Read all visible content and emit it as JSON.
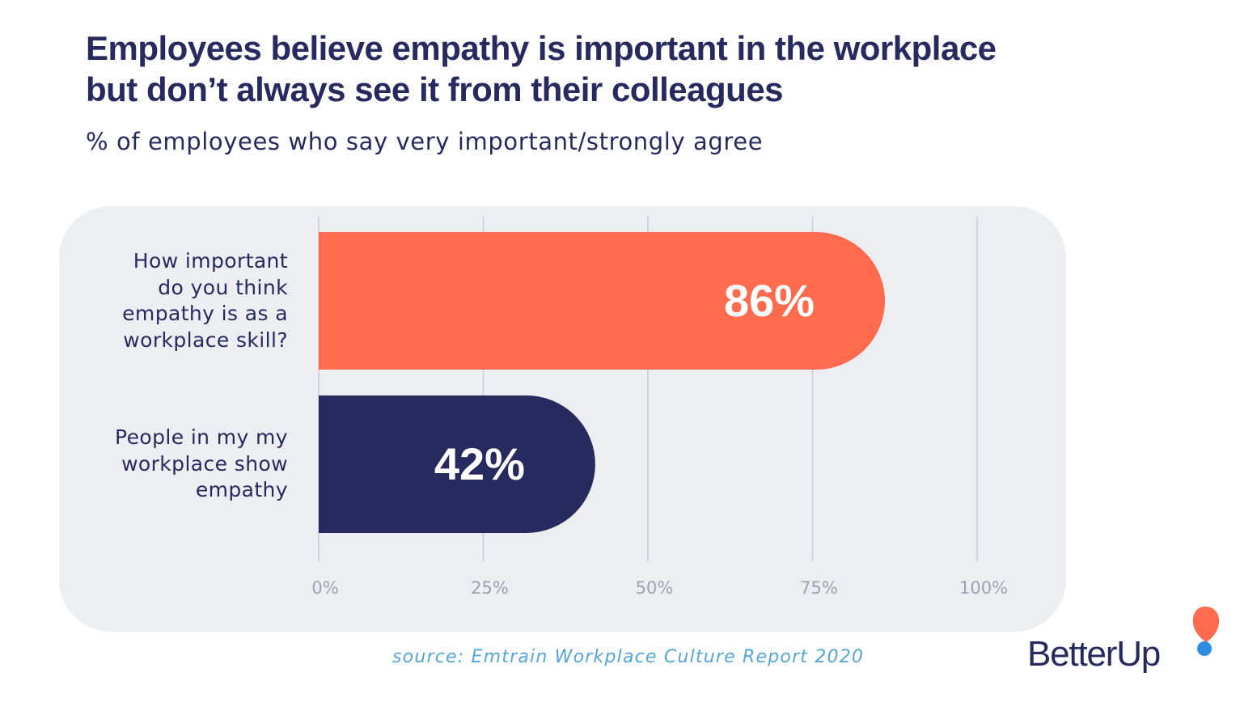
{
  "header": {
    "title_line1": "Employees believe empathy is important in the workplace",
    "title_line2": "but don’t always see it from their colleagues",
    "subtitle": "% of employees who say very important/strongly agree"
  },
  "chart_data": {
    "type": "bar",
    "orientation": "horizontal",
    "categories": [
      [
        "How important",
        "do you think",
        "empathy is as a",
        "workplace skill?"
      ],
      [
        "People in my my",
        "workplace show",
        "empathy"
      ]
    ],
    "values": [
      86,
      42
    ],
    "value_labels": [
      "86%",
      "42%"
    ],
    "bar_colors": [
      "#ff6b4e",
      "#262a5e"
    ],
    "xlim": [
      0,
      100
    ],
    "xticks": [
      0,
      25,
      50,
      75,
      100
    ],
    "xtick_labels": [
      "0%",
      "25%",
      "50%",
      "75%",
      "100%"
    ],
    "grid": true,
    "xlabel": "",
    "ylabel": ""
  },
  "footer": {
    "source": "source: Emtrain Workplace Culture Report 2020",
    "logo_text": "BetterUp"
  },
  "colors": {
    "title": "#262a5e",
    "panel": "#eceef2",
    "grid": "#c9ccd6",
    "tick_label": "#9da2b3",
    "source": "#55a6d8",
    "logo_orange": "#ff6b4e",
    "logo_blue": "#2e8ee6"
  }
}
